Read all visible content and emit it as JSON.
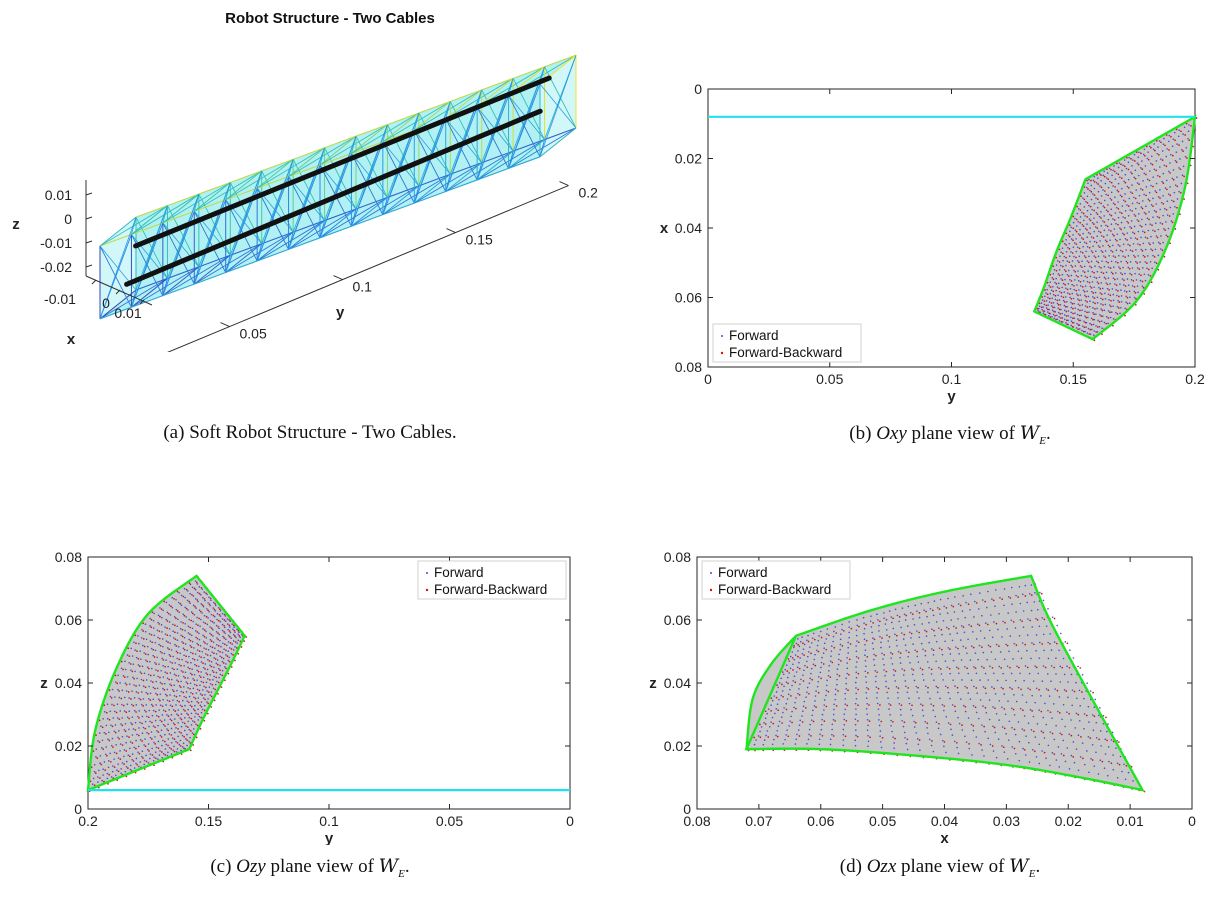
{
  "colors": {
    "boundary": "#1ee61e",
    "reference_line": "#22e0ee",
    "fill": "#c8c8c8",
    "forward": "#4a4ad8",
    "forward_backward": "#d21414",
    "cable": "#111111"
  },
  "captions": {
    "a": {
      "label": "(a)",
      "text": "Soft Robot Structure - Two Cables."
    },
    "b": {
      "label": "(b)",
      "plane": "Oxy",
      "text": "plane view of",
      "symbol": "W",
      "subscript": "E",
      "end": "."
    },
    "c": {
      "label": "(c)",
      "plane": "Ozy",
      "text": "plane view of",
      "symbol": "W",
      "subscript": "E",
      "end": "."
    },
    "d": {
      "label": "(d)",
      "plane": "Ozx",
      "text": "plane view of",
      "symbol": "W",
      "subscript": "E",
      "end": "."
    }
  },
  "chart_data": [
    {
      "id": "a",
      "type": "other",
      "subtype": "3d-mesh",
      "title": "Robot Structure - Two Cables",
      "xlabel": "x",
      "ylabel": "y",
      "zlabel": "z",
      "x_ticks": [
        "-0.01",
        "0",
        "0.01"
      ],
      "y_ticks": [
        "0",
        "0.05",
        "0.1",
        "0.15",
        "0.2"
      ],
      "z_ticks": [
        "0.01",
        "0",
        "-0.01",
        "-0.02"
      ],
      "cable_count": 2
    },
    {
      "id": "b",
      "type": "scatter",
      "xlabel": "y",
      "ylabel": "x",
      "xlim": [
        0,
        0.2
      ],
      "ylim": [
        0,
        0.08
      ],
      "y_reversed": true,
      "x_ticks": [
        "0",
        "0.05",
        "0.1",
        "0.15",
        "0.2"
      ],
      "y_ticks": [
        "0",
        "0.02",
        "0.04",
        "0.06",
        "0.08"
      ],
      "legend": [
        "Forward",
        "Forward-Backward"
      ],
      "legend_position": "bottom-left",
      "reference_line": {
        "orientation": "horizontal",
        "value": 0.008
      },
      "region": {
        "outer_arc": [
          [
            0.2,
            0.008
          ],
          [
            0.196,
            0.028
          ],
          [
            0.188,
            0.046
          ],
          [
            0.176,
            0.061
          ],
          [
            0.158,
            0.072
          ]
        ],
        "inner_arc": [
          [
            0.155,
            0.026
          ],
          [
            0.149,
            0.037
          ],
          [
            0.143,
            0.047
          ],
          [
            0.138,
            0.057
          ],
          [
            0.134,
            0.064
          ]
        ]
      }
    },
    {
      "id": "c",
      "type": "scatter",
      "xlabel": "y",
      "ylabel": "z",
      "xlim": [
        0.2,
        0
      ],
      "ylim": [
        0,
        0.08
      ],
      "x_reversed": true,
      "x_ticks": [
        "0.2",
        "0.15",
        "0.1",
        "0.05",
        "0"
      ],
      "y_ticks": [
        "0",
        "0.02",
        "0.04",
        "0.06",
        "0.08"
      ],
      "legend": [
        "Forward",
        "Forward-Backward"
      ],
      "legend_position": "top-right",
      "reference_line": {
        "orientation": "horizontal",
        "value": 0.006
      },
      "region": {
        "outer_arc": [
          [
            0.2,
            0.006
          ],
          [
            0.197,
            0.025
          ],
          [
            0.188,
            0.045
          ],
          [
            0.175,
            0.062
          ],
          [
            0.155,
            0.074
          ]
        ],
        "inner_arc": [
          [
            0.158,
            0.019
          ],
          [
            0.152,
            0.029
          ],
          [
            0.146,
            0.038
          ],
          [
            0.14,
            0.047
          ],
          [
            0.135,
            0.055
          ]
        ]
      }
    },
    {
      "id": "d",
      "type": "scatter",
      "xlabel": "x",
      "ylabel": "z",
      "xlim": [
        0.08,
        0
      ],
      "ylim": [
        0,
        0.08
      ],
      "x_reversed": true,
      "x_ticks": [
        "0.08",
        "0.07",
        "0.06",
        "0.05",
        "0.04",
        "0.03",
        "0.02",
        "0.01",
        "0"
      ],
      "y_ticks": [
        "0",
        "0.02",
        "0.04",
        "0.06",
        "0.08"
      ],
      "legend": [
        "Forward",
        "Forward-Backward"
      ],
      "legend_position": "top-left",
      "region": {
        "top_arc": [
          [
            0.064,
            0.055
          ],
          [
            0.052,
            0.063
          ],
          [
            0.04,
            0.069
          ],
          [
            0.026,
            0.074
          ]
        ],
        "bottom_arc": [
          [
            0.072,
            0.019
          ],
          [
            0.06,
            0.019
          ],
          [
            0.045,
            0.017
          ],
          [
            0.03,
            0.014
          ],
          [
            0.018,
            0.01
          ],
          [
            0.008,
            0.006
          ]
        ],
        "left_arc": [
          [
            0.072,
            0.019
          ],
          [
            0.071,
            0.035
          ],
          [
            0.068,
            0.046
          ],
          [
            0.064,
            0.055
          ]
        ],
        "right_arc": [
          [
            0.026,
            0.074
          ],
          [
            0.023,
            0.06
          ],
          [
            0.017,
            0.038
          ],
          [
            0.008,
            0.006
          ]
        ]
      }
    }
  ]
}
